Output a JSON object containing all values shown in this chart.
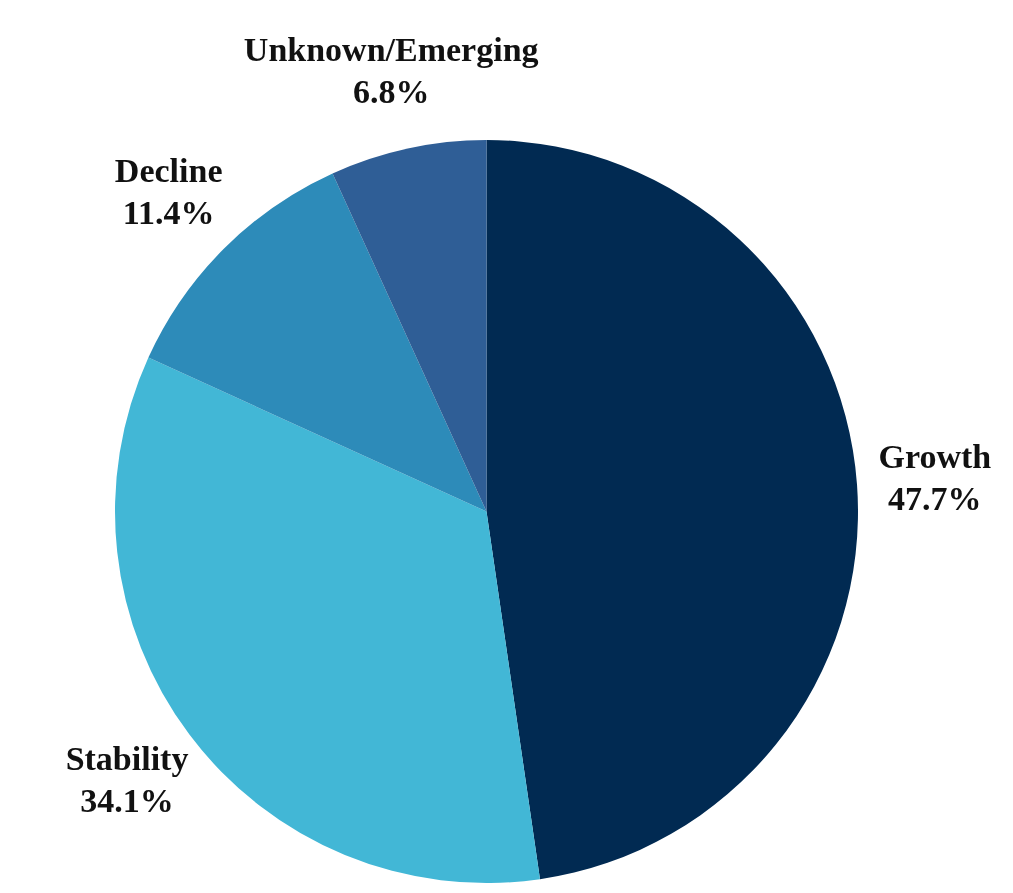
{
  "chart_data": {
    "type": "pie",
    "categories": [
      "Growth",
      "Stability",
      "Decline",
      "Unknown/Emerging"
    ],
    "values": [
      47.7,
      34.1,
      11.4,
      6.8
    ],
    "colors": [
      "#012a52",
      "#42b7d6",
      "#2d8bb9",
      "#2f5e96"
    ],
    "value_labels": [
      "47.7%",
      "34.1%",
      "11.4%",
      "6.8%"
    ],
    "legend": false
  }
}
